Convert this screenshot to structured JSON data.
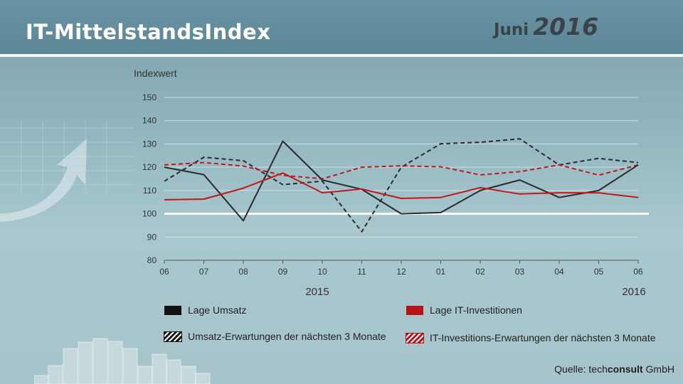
{
  "header": {
    "title": "IT-MittelstandsIndex",
    "month": "Juni",
    "year": "2016"
  },
  "chart_data": {
    "type": "line",
    "ylabel": "Indexwert",
    "ylim": [
      80,
      150
    ],
    "yticks": [
      80,
      90,
      100,
      110,
      120,
      130,
      140,
      150
    ],
    "categories": [
      "06",
      "07",
      "08",
      "09",
      "10",
      "11",
      "12",
      "01",
      "02",
      "03",
      "04",
      "05",
      "06"
    ],
    "year_labels": [
      "2015",
      "2016"
    ],
    "reference_line": 100,
    "grid": true,
    "series": [
      {
        "name": "Lage Umsatz",
        "color": "#2b2b2b",
        "dash": false,
        "values": [
          120,
          116.8,
          97,
          131.2,
          114.5,
          110.5,
          100,
          100.5,
          110,
          114.5,
          107,
          110,
          121
        ]
      },
      {
        "name": "Lage IT-Investitionen",
        "color": "#c0181c",
        "dash": false,
        "values": [
          106,
          106.3,
          111,
          117.5,
          109,
          110.6,
          106.6,
          107,
          111.2,
          108.5,
          109,
          109,
          107
        ]
      },
      {
        "name": "Umsatz-Erwartungen  der nächsten 3 Monate",
        "color": "#2b2b2b",
        "dash": true,
        "values": [
          114,
          124.3,
          122.8,
          112.5,
          114,
          92.3,
          120,
          130.1,
          130.7,
          132.2,
          121,
          123.8,
          122
        ]
      },
      {
        "name": "IT-Investitions-Erwartungen der nächsten 3 Monate",
        "color": "#c0181c",
        "dash": true,
        "values": [
          121,
          122,
          120.5,
          116.5,
          115,
          120,
          120.6,
          120.2,
          116.7,
          118.1,
          121,
          116.6,
          121
        ]
      }
    ]
  },
  "source": {
    "prefix": "Quelle:",
    "brand_a": "tech",
    "brand_b": "consult",
    "suffix": "GmbH"
  }
}
